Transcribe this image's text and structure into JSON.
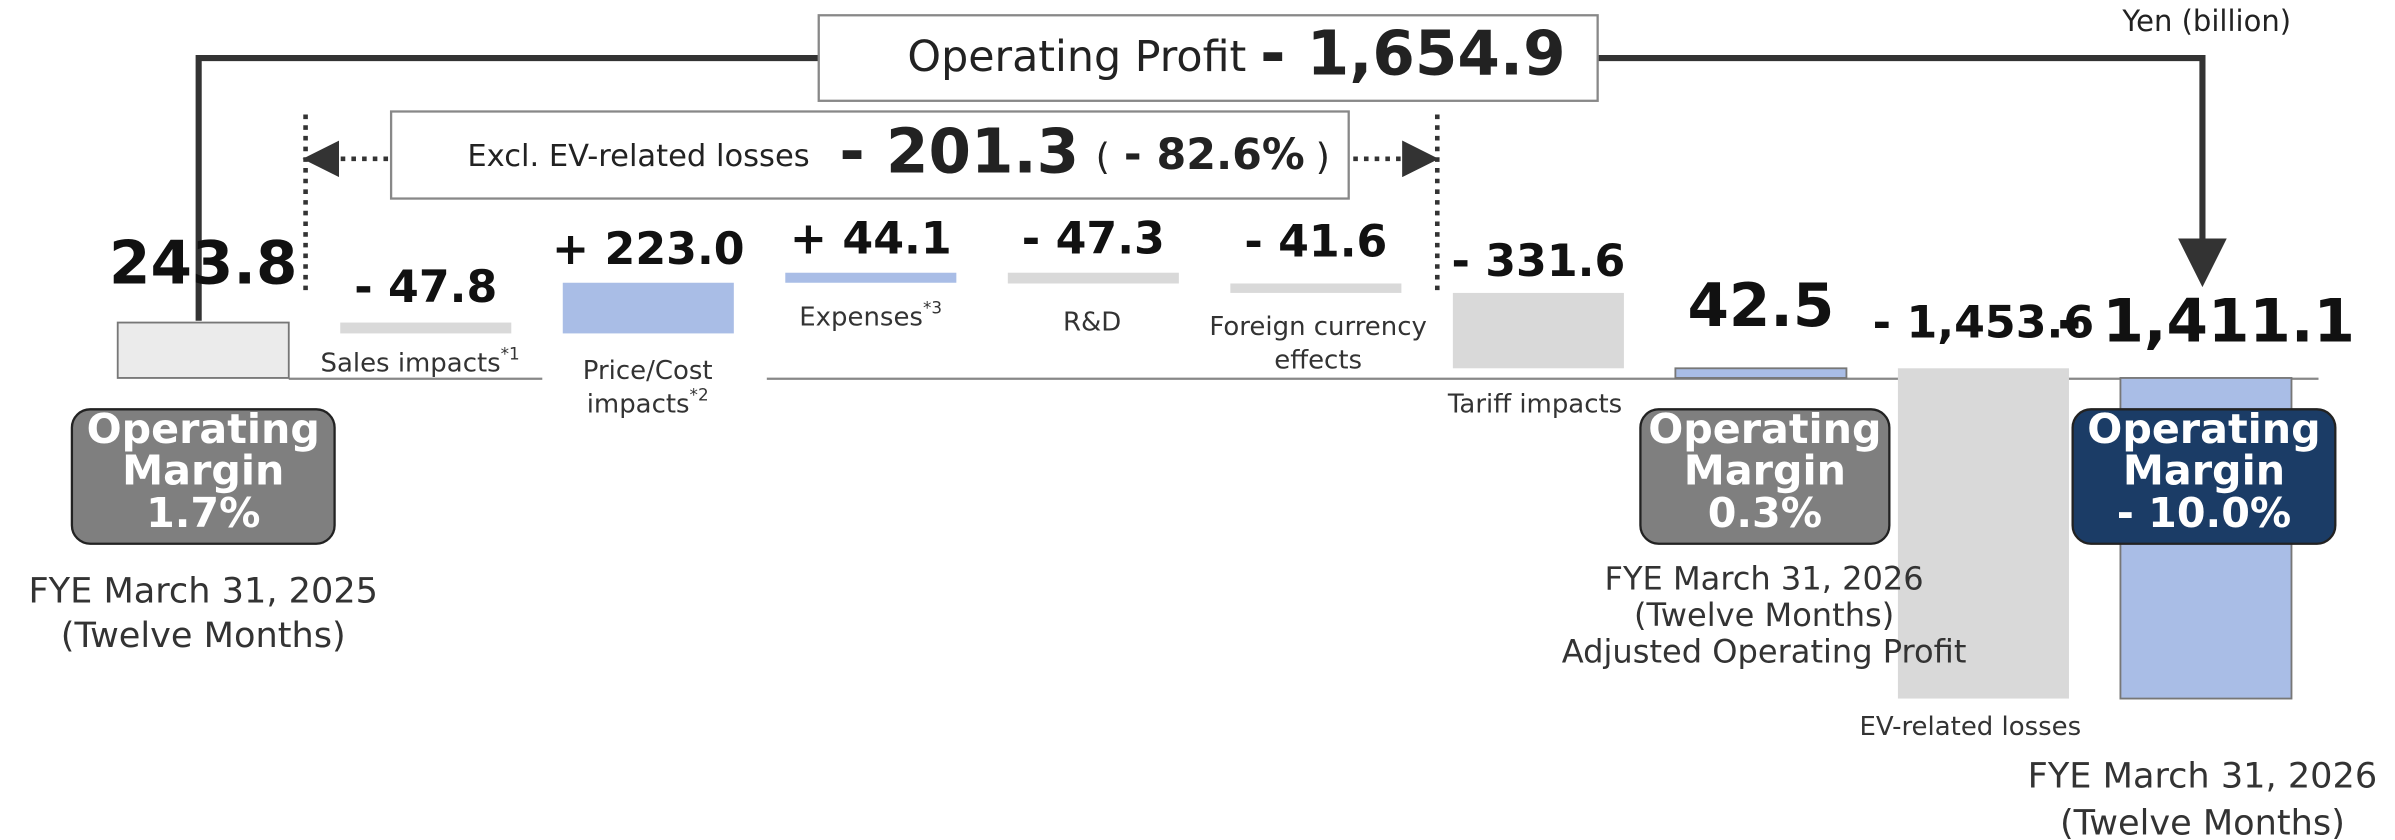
{
  "chart_data": {
    "type": "waterfall",
    "unit_note": "Yen (billion)",
    "categories": [
      "FYE March 31, 2025\n(Twelve Months)",
      "Sales impacts*1",
      "Price/Cost\nimpacts*2",
      "Expenses*3",
      "R&D",
      "Foreign currency\neffects",
      "Tariff impacts",
      "FYE March 31, 2026\n(Twelve Months)\nAdjusted Operating Profit",
      "EV-related losses",
      "FYE March 31, 2026\n(Twelve Months)"
    ],
    "values": [
      243.8,
      -47.8,
      223.0,
      44.1,
      -47.3,
      -41.6,
      -331.6,
      42.5,
      -1453.6,
      -1411.1
    ],
    "value_labels": [
      "243.8",
      "- 47.8",
      "+ 223.0",
      "+ 44.1",
      "- 47.3",
      "- 41.6",
      "- 331.6",
      "42.5",
      "- 1,453.6",
      "- 1,411.1"
    ],
    "bar_kind": [
      "total",
      "change",
      "change",
      "change",
      "change",
      "change",
      "change",
      "total",
      "change",
      "total"
    ],
    "colors": [
      "#ebebeb",
      "#d9d9d9",
      "#a9bde6",
      "#a9bde6",
      "#d9d9d9",
      "#d9d9d9",
      "#d9d9d9",
      "#a9bde6",
      "#d9d9d9",
      "#a9bde6"
    ],
    "ylim": [
      -2000,
      1650
    ],
    "margins": [
      {
        "label": "Operating\nMargin",
        "value": "1.7%",
        "color": "#7f7f7f"
      },
      {
        "label": "Operating\nMargin",
        "value": "0.3%",
        "color": "#7f7f7f"
      },
      {
        "label": "Operating\nMargin",
        "value": "- 10.0%",
        "color": "#1b3c66"
      }
    ],
    "operating_profit": {
      "label": "Operating Profit",
      "value": "- 1,654.9"
    },
    "excl_ev": {
      "label": "Excl. EV-related losses",
      "value": "- 201.3",
      "pct_open": "(",
      "pct": "- 82.6%",
      "pct_close": ")"
    }
  }
}
